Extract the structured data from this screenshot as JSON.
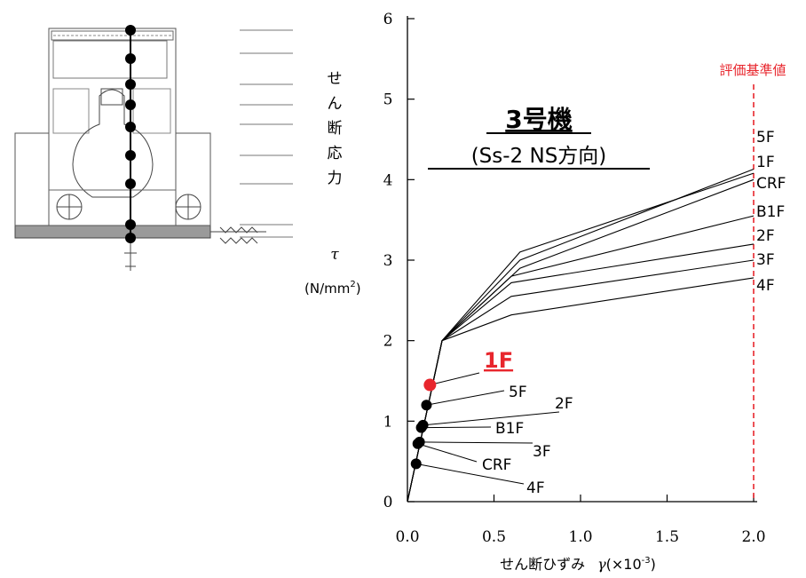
{
  "chart_data": {
    "type": "line",
    "title": "3号機",
    "subtitle": "(Ss-2 NS方向)",
    "xlabel": "せん断ひずみ γ(×10⁻³)",
    "ylabel": "せん断応力 τ (N/mm²)",
    "xlim": [
      0,
      2.0
    ],
    "ylim": [
      0,
      6
    ],
    "xticks": [
      "0.0",
      "0.5",
      "1.0",
      "1.5",
      "2.0"
    ],
    "yticks": [
      "0",
      "1",
      "2",
      "3",
      "4",
      "5",
      "6"
    ],
    "grid": false,
    "reference_line": {
      "label": "評価基準値",
      "x": 2.0,
      "color": "#e8262d"
    },
    "series": [
      {
        "name": "5F",
        "points": [
          [
            0,
            0
          ],
          [
            0.2,
            2.0
          ],
          [
            0.65,
            3.1
          ],
          [
            2.0,
            4.08
          ]
        ]
      },
      {
        "name": "1F",
        "points": [
          [
            0,
            0
          ],
          [
            0.2,
            2.0
          ],
          [
            0.65,
            3.0
          ],
          [
            2.0,
            4.13
          ]
        ]
      },
      {
        "name": "CRF",
        "points": [
          [
            0,
            0
          ],
          [
            0.2,
            2.0
          ],
          [
            0.65,
            2.9
          ],
          [
            2.0,
            4.0
          ]
        ]
      },
      {
        "name": "B1F",
        "points": [
          [
            0,
            0
          ],
          [
            0.2,
            2.0
          ],
          [
            0.6,
            2.8
          ],
          [
            2.0,
            3.55
          ]
        ]
      },
      {
        "name": "2F",
        "points": [
          [
            0,
            0
          ],
          [
            0.2,
            2.0
          ],
          [
            0.6,
            2.72
          ],
          [
            2.0,
            3.2
          ]
        ]
      },
      {
        "name": "3F",
        "points": [
          [
            0,
            0
          ],
          [
            0.2,
            2.0
          ],
          [
            0.6,
            2.55
          ],
          [
            2.0,
            3.0
          ]
        ]
      },
      {
        "name": "4F",
        "points": [
          [
            0,
            0
          ],
          [
            0.2,
            2.0
          ],
          [
            0.6,
            2.32
          ],
          [
            2.0,
            2.78
          ]
        ]
      }
    ],
    "markers": [
      {
        "name": "1F",
        "x": 0.13,
        "y": 1.45,
        "color": "#e8262d",
        "highlight": true
      },
      {
        "name": "5F",
        "x": 0.11,
        "y": 1.2,
        "color": "#000000"
      },
      {
        "name": "2F",
        "x": 0.09,
        "y": 0.95,
        "color": "#000000"
      },
      {
        "name": "B1F",
        "x": 0.08,
        "y": 0.92,
        "color": "#000000"
      },
      {
        "name": "3F",
        "x": 0.07,
        "y": 0.74,
        "color": "#000000"
      },
      {
        "name": "CRF",
        "x": 0.06,
        "y": 0.72,
        "color": "#000000"
      },
      {
        "name": "4F",
        "x": 0.05,
        "y": 0.47,
        "color": "#000000"
      }
    ]
  },
  "labels": {
    "title": "3号機",
    "subtitle": "(Ss-2 NS方向)",
    "ylabel_chars": [
      "せ",
      "ん",
      "断",
      "応",
      "力"
    ],
    "ylabel_symbol": "τ",
    "ylabel_unit": "(N/mm",
    "ylabel_unit_sup": "2",
    "ylabel_close": ")",
    "xlabel_main": "せん断ひずみ",
    "xlabel_symbol": "γ",
    "xlabel_unit": "(×10",
    "xlabel_unit_sup": "-3",
    "xlabel_close": ")",
    "reference": "評価基準値",
    "highlight_floor": "1F"
  },
  "diagram": {
    "caption": "building cross-section"
  }
}
